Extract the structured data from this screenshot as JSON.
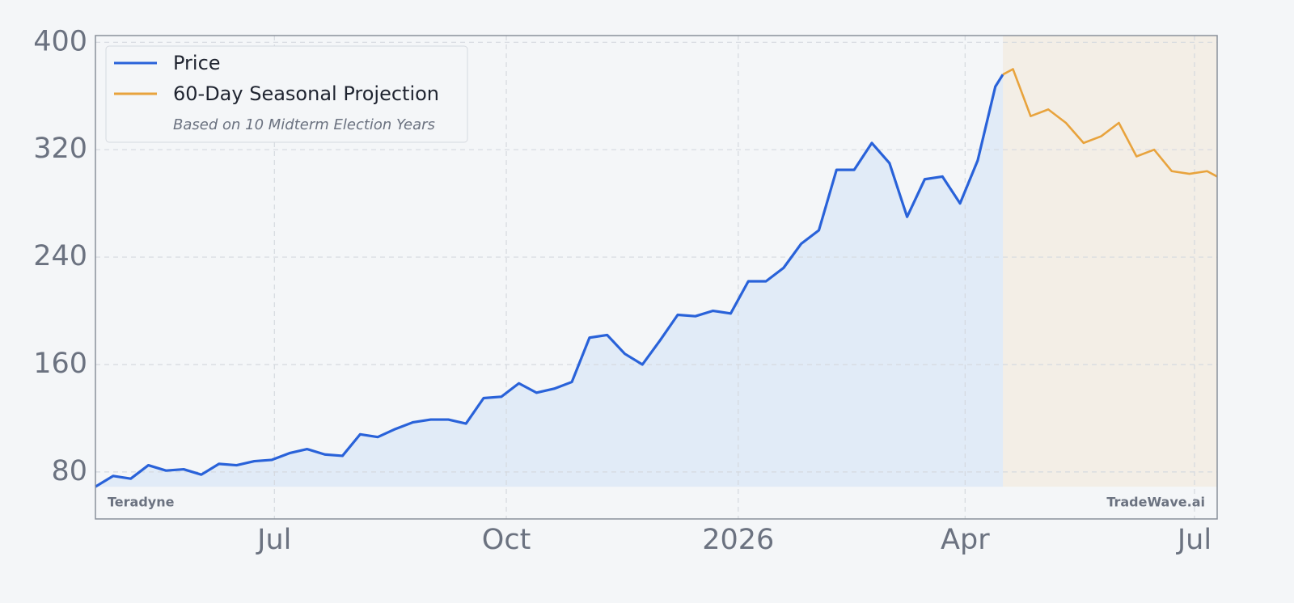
{
  "chart_data": {
    "type": "line",
    "watermark_left": "Teradyne",
    "watermark_right": "TradeWave.ai",
    "legend_note": "Based on 10 Midterm Election Years",
    "legend": "upper left",
    "grid": true,
    "xlim": [
      "2025-04-21",
      "2026-07-10"
    ],
    "xticks": [
      {
        "value": "2025-07-01",
        "label": "Jul"
      },
      {
        "value": "2025-10-01",
        "label": "Oct"
      },
      {
        "value": "2026-01-01",
        "label": "2026"
      },
      {
        "value": "2026-04-01",
        "label": "Apr"
      },
      {
        "value": "2026-07-01",
        "label": "Jul"
      }
    ],
    "ylim": [
      45,
      405
    ],
    "yticks": [
      80,
      160,
      240,
      320,
      400
    ],
    "series": [
      {
        "name": "Price",
        "color": "#2962d9",
        "fill": "#e1ebf7",
        "x": [
          "2025-04-21",
          "2025-04-28",
          "2025-05-05",
          "2025-05-12",
          "2025-05-19",
          "2025-05-26",
          "2025-06-02",
          "2025-06-09",
          "2025-06-16",
          "2025-06-23",
          "2025-06-30",
          "2025-07-07",
          "2025-07-14",
          "2025-07-21",
          "2025-07-28",
          "2025-08-04",
          "2025-08-11",
          "2025-08-18",
          "2025-08-25",
          "2025-09-01",
          "2025-09-08",
          "2025-09-15",
          "2025-09-22",
          "2025-09-29",
          "2025-10-06",
          "2025-10-13",
          "2025-10-20",
          "2025-10-27",
          "2025-11-03",
          "2025-11-10",
          "2025-11-17",
          "2025-11-24",
          "2025-12-01",
          "2025-12-08",
          "2025-12-15",
          "2025-12-22",
          "2025-12-29",
          "2026-01-05",
          "2026-01-12",
          "2026-01-19",
          "2026-01-26",
          "2026-02-02",
          "2026-02-09",
          "2026-02-16",
          "2026-02-23",
          "2026-03-02",
          "2026-03-09",
          "2026-03-16",
          "2026-03-23",
          "2026-03-30",
          "2026-04-06",
          "2026-04-13",
          "2026-04-16"
        ],
        "values": [
          69,
          77,
          75,
          85,
          81,
          82,
          78,
          86,
          85,
          88,
          89,
          94,
          97,
          93,
          92,
          108,
          106,
          112,
          117,
          119,
          119,
          116,
          135,
          136,
          146,
          139,
          142,
          147,
          180,
          182,
          168,
          160,
          178,
          197,
          196,
          200,
          198,
          222,
          222,
          232,
          250,
          260,
          305,
          305,
          325,
          310,
          270,
          298,
          300,
          280,
          312,
          367,
          376
        ]
      },
      {
        "name": "60-Day Seasonal Projection",
        "color": "#e8a33d",
        "fill": "#f3eee6",
        "x": [
          "2026-04-16",
          "2026-04-20",
          "2026-04-27",
          "2026-05-04",
          "2026-05-11",
          "2026-05-18",
          "2026-05-25",
          "2026-06-01",
          "2026-06-08",
          "2026-06-15",
          "2026-06-22",
          "2026-06-29",
          "2026-07-06",
          "2026-07-10"
        ],
        "values": [
          376,
          380,
          345,
          350,
          340,
          325,
          330,
          340,
          315,
          320,
          304,
          302,
          304,
          300
        ]
      }
    ]
  }
}
